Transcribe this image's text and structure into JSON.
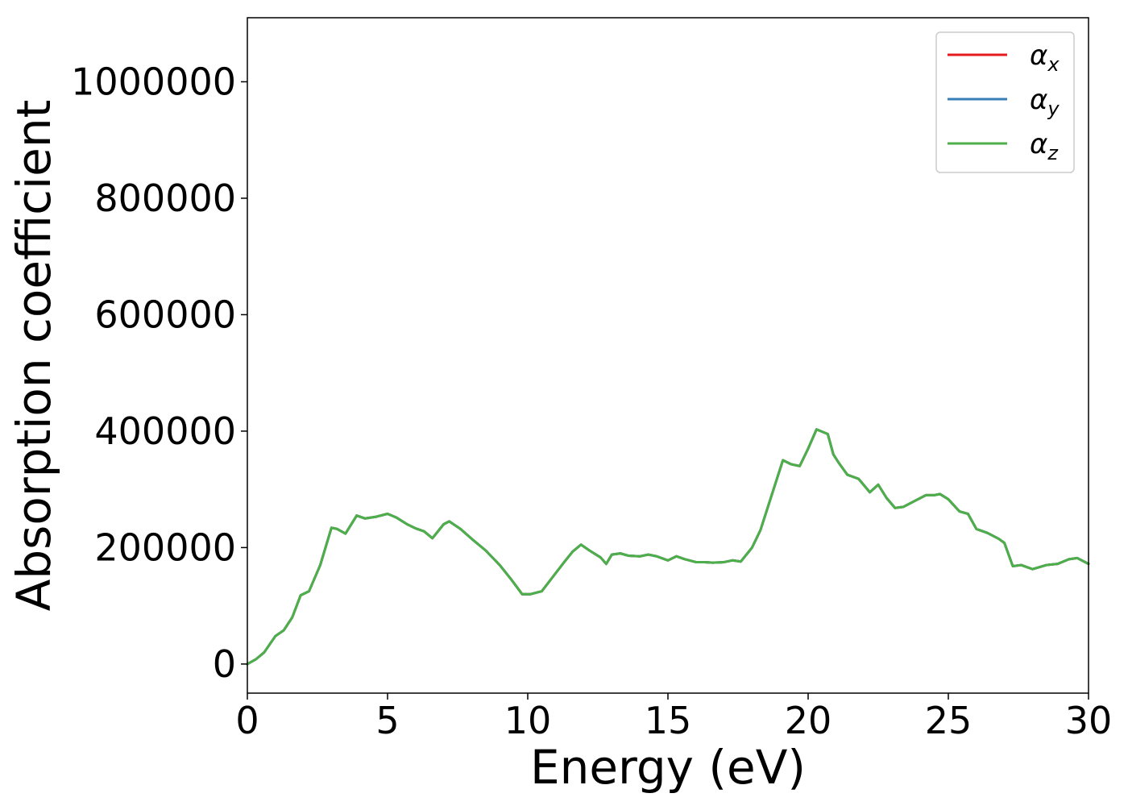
{
  "chart_data": {
    "type": "line",
    "title": "",
    "xlabel": "Energy (eV)",
    "ylabel": "Absorption coefficient",
    "xlim": [
      0,
      30
    ],
    "ylim": [
      -50000,
      1110000
    ],
    "xticks": [
      0,
      5,
      10,
      15,
      20,
      25,
      30
    ],
    "xtick_labels": [
      "0",
      "5",
      "10",
      "15",
      "20",
      "25",
      "30"
    ],
    "yticks": [
      0,
      200000,
      400000,
      600000,
      800000,
      1000000
    ],
    "ytick_labels": [
      "0",
      "200000",
      "400000",
      "600000",
      "800000",
      "1000000"
    ],
    "grid": false,
    "legend_position": "top-right",
    "x": [
      0,
      0.3,
      0.6,
      1.0,
      1.3,
      1.6,
      1.9,
      2.2,
      2.6,
      3.0,
      3.2,
      3.5,
      3.9,
      4.2,
      4.6,
      5.0,
      5.3,
      5.7,
      6.0,
      6.3,
      6.6,
      7.0,
      7.2,
      7.6,
      8.0,
      8.5,
      9.0,
      9.4,
      9.8,
      10.1,
      10.5,
      10.9,
      11.3,
      11.6,
      11.9,
      12.2,
      12.6,
      12.8,
      13.0,
      13.3,
      13.6,
      14.0,
      14.3,
      14.6,
      15.0,
      15.3,
      15.6,
      16.0,
      16.3,
      16.6,
      17.0,
      17.3,
      17.6,
      18.0,
      18.3,
      18.7,
      19.1,
      19.4,
      19.7,
      20.0,
      20.3,
      20.7,
      20.9,
      21.1,
      21.4,
      21.8,
      22.2,
      22.5,
      22.8,
      23.1,
      23.4,
      23.8,
      24.2,
      24.5,
      24.7,
      25.0,
      25.4,
      25.7,
      26.0,
      26.4,
      26.8,
      27.0,
      27.3,
      27.6,
      28.0,
      28.5,
      28.9,
      29.3,
      29.6,
      30.0
    ],
    "series": [
      {
        "name": "αx",
        "color": "#e41a1c",
        "values": [
          0,
          8000,
          20000,
          48000,
          58000,
          80000,
          118000,
          125000,
          170000,
          234000,
          232000,
          224000,
          255000,
          250000,
          253000,
          258000,
          252000,
          240000,
          233000,
          228000,
          216000,
          240000,
          245000,
          232000,
          215000,
          195000,
          170000,
          146000,
          120000,
          120000,
          125000,
          150000,
          175000,
          193000,
          205000,
          195000,
          183000,
          172000,
          188000,
          190000,
          186000,
          185000,
          188000,
          185000,
          178000,
          185000,
          180000,
          175000,
          175000,
          174000,
          175000,
          178000,
          176000,
          200000,
          230000,
          290000,
          350000,
          343000,
          340000,
          370000,
          403000,
          395000,
          360000,
          345000,
          325000,
          318000,
          295000,
          308000,
          285000,
          268000,
          270000,
          280000,
          290000,
          290000,
          292000,
          283000,
          262000,
          258000,
          232000,
          225000,
          215000,
          208000,
          168000,
          170000,
          163000,
          170000,
          172000,
          180000,
          182000,
          172000
        ]
      },
      {
        "name": "αy",
        "color": "#377eb8",
        "values": [
          0,
          8000,
          20000,
          48000,
          58000,
          80000,
          118000,
          125000,
          170000,
          234000,
          232000,
          224000,
          255000,
          250000,
          253000,
          258000,
          252000,
          240000,
          233000,
          228000,
          216000,
          240000,
          245000,
          232000,
          215000,
          195000,
          170000,
          146000,
          120000,
          120000,
          125000,
          150000,
          175000,
          193000,
          205000,
          195000,
          183000,
          172000,
          188000,
          190000,
          186000,
          185000,
          188000,
          185000,
          178000,
          185000,
          180000,
          175000,
          175000,
          174000,
          175000,
          178000,
          176000,
          200000,
          230000,
          290000,
          350000,
          343000,
          340000,
          370000,
          403000,
          395000,
          360000,
          345000,
          325000,
          318000,
          295000,
          308000,
          285000,
          268000,
          270000,
          280000,
          290000,
          290000,
          292000,
          283000,
          262000,
          258000,
          232000,
          225000,
          215000,
          208000,
          168000,
          170000,
          163000,
          170000,
          172000,
          180000,
          182000,
          172000
        ]
      },
      {
        "name": "αz",
        "color": "#4daf4a",
        "values": [
          0,
          8000,
          20000,
          48000,
          58000,
          80000,
          118000,
          125000,
          170000,
          234000,
          232000,
          224000,
          255000,
          250000,
          253000,
          258000,
          252000,
          240000,
          233000,
          228000,
          216000,
          240000,
          245000,
          232000,
          215000,
          195000,
          170000,
          146000,
          120000,
          120000,
          125000,
          150000,
          175000,
          193000,
          205000,
          195000,
          183000,
          172000,
          188000,
          190000,
          186000,
          185000,
          188000,
          185000,
          178000,
          185000,
          180000,
          175000,
          175000,
          174000,
          175000,
          178000,
          176000,
          200000,
          230000,
          290000,
          350000,
          343000,
          340000,
          370000,
          403000,
          395000,
          360000,
          345000,
          325000,
          318000,
          295000,
          308000,
          285000,
          268000,
          270000,
          280000,
          290000,
          290000,
          292000,
          283000,
          262000,
          258000,
          232000,
          225000,
          215000,
          208000,
          168000,
          170000,
          163000,
          170000,
          172000,
          180000,
          182000,
          172000
        ]
      }
    ],
    "legend": [
      {
        "base": "α",
        "sub": "x",
        "color": "#e41a1c"
      },
      {
        "base": "α",
        "sub": "y",
        "color": "#377eb8"
      },
      {
        "base": "α",
        "sub": "z",
        "color": "#4daf4a"
      }
    ]
  }
}
